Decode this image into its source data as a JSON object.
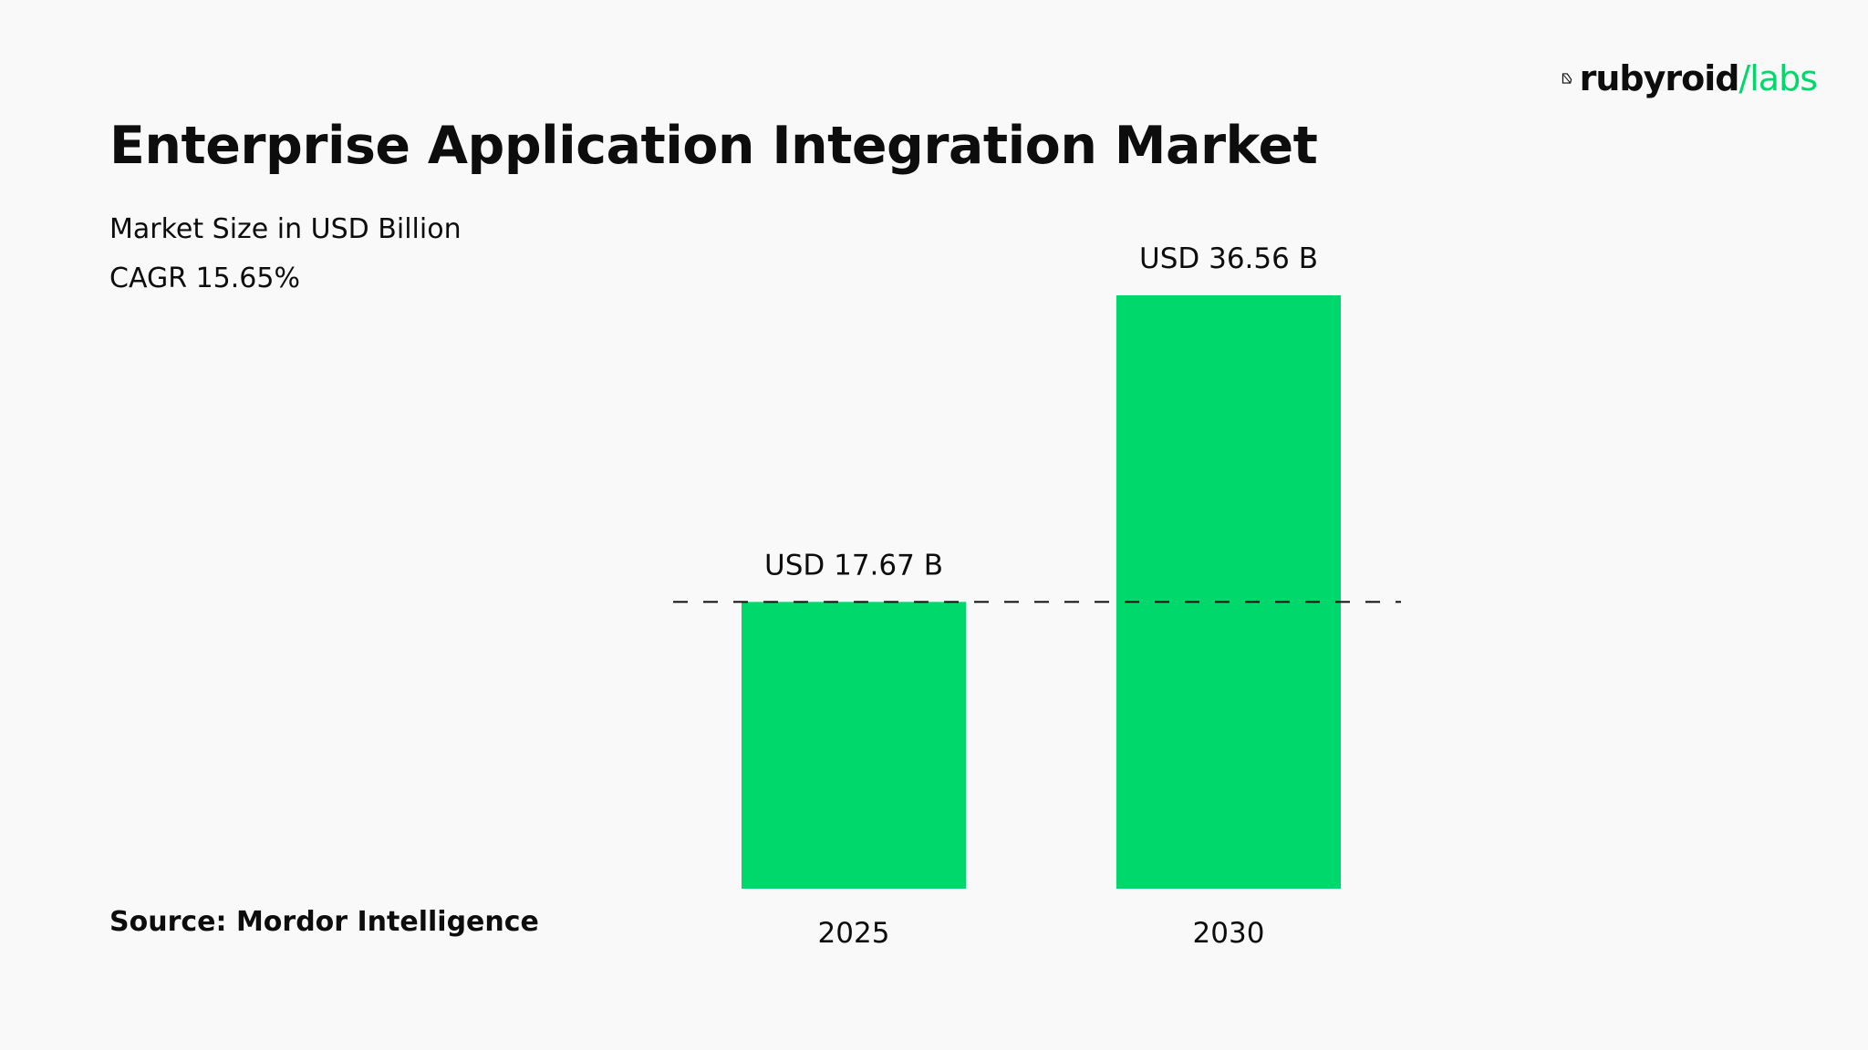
{
  "header": {
    "title": "Enterprise Application Integration Market",
    "subtitle": "Market Size in USD Billion",
    "cagr": "CAGR 15.65%"
  },
  "footer": {
    "source": "Source: Mordor Intelligence"
  },
  "logo": {
    "word": "rubyroid",
    "accent": "/labs",
    "icon": "rubyroid-logo-icon"
  },
  "colors": {
    "bar": "#00d86c",
    "accent": "#00d86c",
    "text": "#0d0d0d",
    "background": "#f9f9f9"
  },
  "chart_data": {
    "type": "bar",
    "categories": [
      "2025",
      "2030"
    ],
    "values": [
      17.67,
      36.56
    ],
    "value_labels": [
      "USD 17.67 B",
      "USD 36.56 B"
    ],
    "reference_line": {
      "value": 17.67,
      "style": "dashed"
    },
    "ylim": [
      0,
      36.56
    ],
    "grid": false,
    "legend": "none"
  }
}
